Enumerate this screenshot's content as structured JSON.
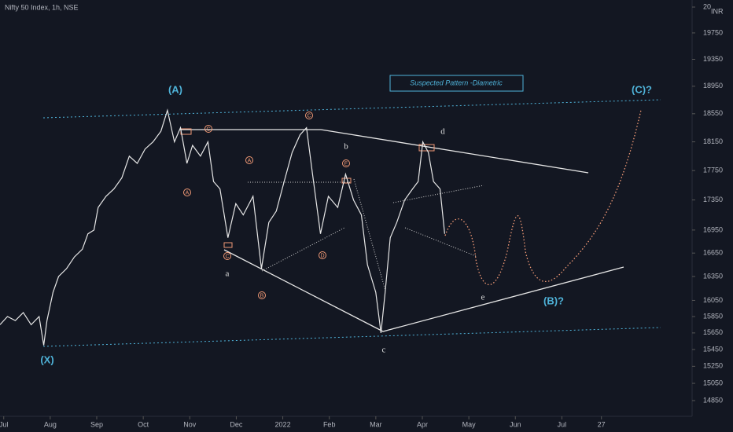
{
  "chart_data": {
    "type": "line",
    "title": "Nifty 50 Index, 1h, NSE",
    "currency": "INR",
    "log_scale": true,
    "color": "#e6e6e6",
    "x": [
      -0.08,
      0.08,
      0.25,
      0.42,
      0.59,
      0.76,
      0.86,
      0.93,
      1.06,
      1.18,
      1.35,
      1.52,
      1.69,
      1.81,
      1.94,
      2.03,
      2.2,
      2.37,
      2.54,
      2.7,
      2.87,
      3.04,
      3.21,
      3.38,
      3.52,
      3.67,
      3.8,
      3.94,
      4.06,
      4.23,
      4.39,
      4.51,
      4.65,
      4.82,
      4.99,
      5.15,
      5.36,
      5.54,
      5.7,
      5.86,
      6.03,
      6.2,
      6.37,
      6.51,
      6.64,
      6.81,
      6.98,
      7.18,
      7.35,
      7.52,
      7.69,
      7.82,
      8.0,
      8.11,
      8.2,
      8.31,
      8.45,
      8.62,
      8.79,
      8.91,
      9.01,
      9.13,
      9.24,
      9.38,
      9.48
    ],
    "values": [
      15750,
      15850,
      15800,
      15900,
      15750,
      15850,
      15500,
      15800,
      16150,
      16350,
      16450,
      16600,
      16700,
      16900,
      16950,
      17250,
      17400,
      17500,
      17650,
      17950,
      17850,
      18050,
      18150,
      18300,
      18600,
      18150,
      18350,
      17850,
      18100,
      17950,
      18150,
      17600,
      17500,
      16850,
      17300,
      17150,
      17400,
      16450,
      17050,
      17200,
      17600,
      18000,
      18250,
      18350,
      17700,
      16900,
      17400,
      17250,
      17700,
      17350,
      17150,
      16500,
      16150,
      15650,
      16150,
      16850,
      17050,
      17350,
      17500,
      17600,
      18150,
      18000,
      17600,
      17500,
      16900
    ],
    "xlim": [
      -0.08,
      14.8
    ],
    "ylim": [
      14850,
      20150
    ],
    "xticks": [
      {
        "value": 0,
        "label": "Jul"
      },
      {
        "value": 1,
        "label": "Aug"
      },
      {
        "value": 2,
        "label": "Sep"
      },
      {
        "value": 3,
        "label": "Oct"
      },
      {
        "value": 4,
        "label": "Nov"
      },
      {
        "value": 5,
        "label": "Dec"
      },
      {
        "value": 6,
        "label": "2022"
      },
      {
        "value": 7,
        "label": "Feb"
      },
      {
        "value": 8,
        "label": "Mar"
      },
      {
        "value": 9,
        "label": "Apr"
      },
      {
        "value": 10,
        "label": "May"
      },
      {
        "value": 11,
        "label": "Jun"
      },
      {
        "value": 12,
        "label": "Jul"
      },
      {
        "value": 12.85,
        "label": "27"
      }
    ],
    "yticks": [
      14850,
      15050,
      15250,
      15450,
      15650,
      15850,
      16050,
      16350,
      16650,
      16950,
      17350,
      17750,
      18150,
      18550,
      18950,
      19350,
      19750,
      {
        "value": 20150,
        "label": "20"
      }
    ],
    "pattern_label": "Suspected Pattern -Diametric",
    "degree_labels": [
      "(A)",
      "(X)",
      "(B)?",
      "(C)?"
    ],
    "wave_labels": [
      "a",
      "b",
      "c",
      "d",
      "e"
    ],
    "circled_labels": [
      "A",
      "B",
      "C",
      "D",
      "E",
      "A",
      "C",
      "C"
    ]
  }
}
